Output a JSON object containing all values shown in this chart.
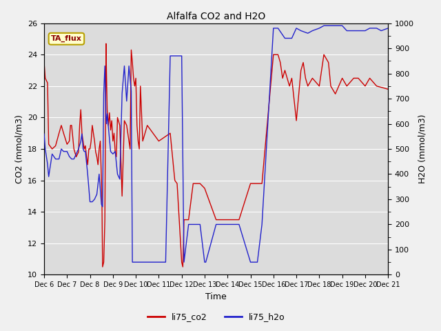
{
  "title": "Alfalfa CO2 and H2O",
  "xlabel": "Time",
  "ylabel_left": "CO2 (mmol/m3)",
  "ylabel_right": "H2O (mmol/m3)",
  "annotation": "TA_flux",
  "ylim_left": [
    10,
    26
  ],
  "ylim_right": [
    0,
    1000
  ],
  "yticks_left": [
    10,
    12,
    14,
    16,
    18,
    20,
    22,
    24,
    26
  ],
  "yticks_right": [
    0,
    100,
    200,
    300,
    400,
    500,
    600,
    700,
    800,
    900,
    1000
  ],
  "plot_bg": "#dcdcdc",
  "fig_bg": "#f0f0f0",
  "grid_color": "#ffffff",
  "line_co2_color": "#cc0000",
  "line_h2o_color": "#2222cc",
  "legend_labels": [
    "li75_co2",
    "li75_h2o"
  ],
  "x_tick_labels": [
    "Dec 6",
    "Dec 7",
    "Dec 8",
    "Dec 9",
    "Dec 10",
    "Dec 11",
    "Dec 12",
    "Dec 13",
    "Dec 14",
    "Dec 15",
    "Dec 16",
    "Dec 17",
    "Dec 18",
    "Dec 19",
    "Dec 20",
    "Dec 21"
  ],
  "co2_x": [
    0.0,
    0.05,
    0.15,
    0.2,
    0.35,
    0.5,
    0.65,
    0.75,
    0.85,
    1.0,
    1.1,
    1.15,
    1.2,
    1.3,
    1.4,
    1.5,
    1.55,
    1.6,
    1.65,
    1.7,
    1.75,
    1.8,
    1.85,
    1.9,
    1.95,
    2.0,
    2.05,
    2.1,
    2.15,
    2.2,
    2.25,
    2.3,
    2.35,
    2.4,
    2.45,
    2.5,
    2.52,
    2.55,
    2.6,
    2.65,
    2.7,
    2.72,
    2.75,
    2.8,
    2.85,
    2.9,
    2.95,
    3.0,
    3.05,
    3.1,
    3.15,
    3.2,
    3.3,
    3.4,
    3.5,
    3.6,
    3.7,
    3.75,
    3.8,
    3.85,
    3.9,
    3.95,
    4.0,
    4.05,
    4.1,
    4.15,
    4.2,
    4.3,
    4.5,
    5.0,
    5.5,
    5.7,
    5.8,
    6.0,
    6.05,
    6.1,
    6.3,
    6.5,
    6.8,
    7.0,
    7.5,
    8.0,
    8.5,
    9.0,
    9.5,
    10.0,
    10.2,
    10.3,
    10.4,
    10.5,
    10.6,
    10.7,
    10.8,
    11.0,
    11.2,
    11.3,
    11.4,
    11.5,
    11.7,
    12.0,
    12.2,
    12.4,
    12.5,
    12.7,
    13.0,
    13.2,
    13.5,
    13.7,
    14.0,
    14.2,
    14.5,
    15.0
  ],
  "co2_y": [
    23.5,
    22.5,
    22.2,
    18.3,
    18.0,
    18.2,
    19.0,
    19.5,
    19.0,
    18.3,
    18.5,
    19.5,
    19.5,
    18.0,
    17.5,
    17.8,
    19.5,
    20.5,
    19.0,
    18.5,
    18.0,
    18.2,
    17.5,
    17.0,
    18.0,
    18.0,
    18.5,
    19.5,
    19.0,
    18.5,
    17.8,
    17.5,
    17.0,
    18.0,
    18.5,
    16.0,
    15.0,
    10.5,
    10.8,
    13.5,
    24.7,
    22.8,
    20.5,
    19.5,
    20.3,
    19.2,
    19.8,
    18.5,
    19.0,
    17.8,
    17.5,
    20.0,
    19.5,
    15.0,
    19.8,
    19.5,
    18.5,
    18.0,
    24.3,
    23.5,
    22.5,
    22.0,
    22.5,
    19.5,
    18.5,
    18.0,
    22.0,
    18.5,
    19.5,
    18.5,
    19.0,
    16.0,
    15.8,
    10.8,
    10.5,
    13.5,
    13.5,
    15.8,
    15.8,
    15.5,
    13.5,
    13.5,
    13.5,
    15.8,
    15.8,
    24.0,
    24.0,
    23.5,
    22.5,
    23.0,
    22.5,
    22.0,
    22.5,
    19.8,
    23.0,
    23.5,
    22.5,
    22.0,
    22.5,
    22.0,
    24.0,
    23.5,
    22.0,
    21.5,
    22.5,
    22.0,
    22.5,
    22.5,
    22.0,
    22.5,
    22.0,
    21.8
  ],
  "h2o_x": [
    0.0,
    0.05,
    0.15,
    0.2,
    0.35,
    0.5,
    0.65,
    0.75,
    0.85,
    1.0,
    1.1,
    1.2,
    1.3,
    1.5,
    1.6,
    1.65,
    1.7,
    1.75,
    1.8,
    1.9,
    2.0,
    2.1,
    2.2,
    2.3,
    2.4,
    2.5,
    2.55,
    2.6,
    2.65,
    2.7,
    2.72,
    2.75,
    2.8,
    2.9,
    3.0,
    3.1,
    3.2,
    3.3,
    3.4,
    3.5,
    3.6,
    3.7,
    3.8,
    3.85,
    3.9,
    3.95,
    4.0,
    4.05,
    4.1,
    4.15,
    4.2,
    4.3,
    4.4,
    4.5,
    4.6,
    5.0,
    5.3,
    5.5,
    5.7,
    6.0,
    6.1,
    6.3,
    6.5,
    6.8,
    7.0,
    7.05,
    7.5,
    8.0,
    8.5,
    9.0,
    9.3,
    9.5,
    10.0,
    10.2,
    10.5,
    10.8,
    11.0,
    11.2,
    11.5,
    11.7,
    12.0,
    12.2,
    12.5,
    12.7,
    13.0,
    13.2,
    13.5,
    13.7,
    14.0,
    14.2,
    14.3,
    14.5,
    14.7,
    15.0
  ],
  "h2o_y": [
    560,
    500,
    440,
    390,
    480,
    460,
    460,
    500,
    490,
    490,
    470,
    460,
    460,
    500,
    530,
    560,
    500,
    490,
    490,
    400,
    290,
    290,
    300,
    320,
    400,
    280,
    270,
    720,
    830,
    620,
    600,
    640,
    590,
    490,
    480,
    490,
    400,
    380,
    720,
    830,
    690,
    830,
    730,
    50,
    50,
    50,
    50,
    50,
    50,
    50,
    50,
    50,
    50,
    50,
    50,
    50,
    50,
    870,
    870,
    870,
    50,
    200,
    200,
    200,
    50,
    50,
    200,
    200,
    200,
    50,
    50,
    200,
    980,
    980,
    940,
    940,
    980,
    970,
    960,
    970,
    980,
    990,
    990,
    990,
    990,
    970,
    970,
    970,
    970,
    980,
    980,
    980,
    970,
    980
  ]
}
